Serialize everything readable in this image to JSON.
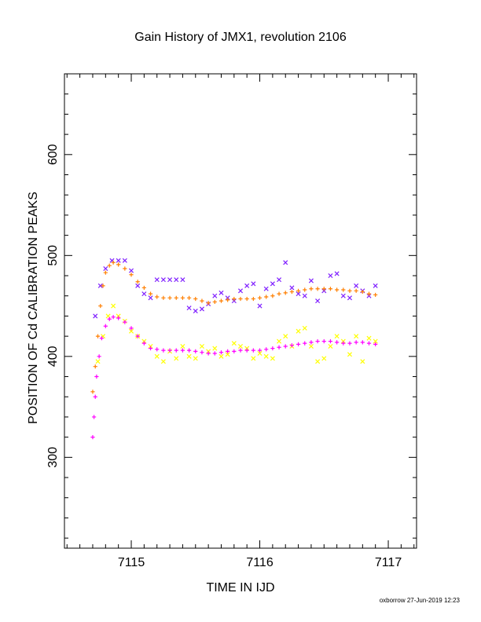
{
  "chart_data": {
    "type": "scatter",
    "title": "Gain History of JMX1, revolution 2106",
    "xlabel": "TIME IN IJD",
    "ylabel": "POSITION OF Cd CALIBRATION PEAKS",
    "xlim": [
      7114.48,
      7117.22
    ],
    "ylim": [
      210,
      680
    ],
    "xticks": [
      7115,
      7116,
      7117
    ],
    "yticks": [
      300,
      400,
      500,
      600
    ],
    "grid": false,
    "series": [
      {
        "marker": "x",
        "color": "#7f1fff",
        "x": [
          7114.72,
          7114.76,
          7114.8,
          7114.85,
          7114.9,
          7114.95,
          7115.0,
          7115.05,
          7115.1,
          7115.15,
          7115.2,
          7115.25,
          7115.3,
          7115.35,
          7115.4,
          7115.45,
          7115.5,
          7115.55,
          7115.6,
          7115.65,
          7115.7,
          7115.75,
          7115.8,
          7115.85,
          7115.9,
          7115.95,
          7116.0,
          7116.05,
          7116.1,
          7116.15,
          7116.2,
          7116.25,
          7116.3,
          7116.35,
          7116.4,
          7116.45,
          7116.5,
          7116.55,
          7116.6,
          7116.65,
          7116.7,
          7116.75,
          7116.8,
          7116.85,
          7116.9
        ],
        "y": [
          440,
          470,
          487,
          495,
          495,
          495,
          485,
          470,
          462,
          458,
          476,
          476,
          476,
          476,
          476,
          448,
          445,
          447,
          452,
          460,
          463,
          458,
          455,
          465,
          470,
          472,
          450,
          467,
          472,
          476,
          493,
          468,
          462,
          460,
          475,
          455,
          465,
          480,
          482,
          460,
          458,
          470,
          465,
          460,
          470
        ]
      },
      {
        "marker": "+",
        "color": "#ff7f00",
        "x": [
          7114.7,
          7114.72,
          7114.74,
          7114.76,
          7114.78,
          7114.8,
          7114.83,
          7114.86,
          7114.9,
          7114.95,
          7115.0,
          7115.05,
          7115.1,
          7115.15,
          7115.2,
          7115.25,
          7115.3,
          7115.35,
          7115.4,
          7115.45,
          7115.5,
          7115.55,
          7115.6,
          7115.65,
          7115.7,
          7115.75,
          7115.8,
          7115.85,
          7115.9,
          7115.95,
          7116.0,
          7116.05,
          7116.1,
          7116.15,
          7116.2,
          7116.25,
          7116.3,
          7116.35,
          7116.4,
          7116.45,
          7116.5,
          7116.55,
          7116.6,
          7116.65,
          7116.7,
          7116.75,
          7116.8,
          7116.85,
          7116.9
        ],
        "y": [
          365,
          390,
          420,
          450,
          470,
          483,
          490,
          493,
          491,
          487,
          481,
          474,
          468,
          462,
          459,
          458,
          458,
          458,
          458,
          458,
          457,
          455,
          453,
          454,
          455,
          456,
          457,
          457,
          457,
          457,
          458,
          459,
          460,
          462,
          463,
          464,
          465,
          466,
          467,
          467,
          467,
          467,
          466,
          466,
          465,
          465,
          464,
          462,
          461
        ]
      },
      {
        "marker": "x",
        "color": "#ffff00",
        "x": [
          7114.74,
          7114.78,
          7114.82,
          7114.86,
          7114.9,
          7114.95,
          7115.0,
          7115.05,
          7115.1,
          7115.15,
          7115.2,
          7115.25,
          7115.3,
          7115.35,
          7115.4,
          7115.45,
          7115.5,
          7115.55,
          7115.6,
          7115.65,
          7115.7,
          7115.75,
          7115.8,
          7115.85,
          7115.9,
          7115.95,
          7116.0,
          7116.05,
          7116.1,
          7116.15,
          7116.2,
          7116.25,
          7116.3,
          7116.35,
          7116.4,
          7116.45,
          7116.5,
          7116.55,
          7116.6,
          7116.65,
          7116.7,
          7116.75,
          7116.8,
          7116.85,
          7116.9
        ],
        "y": [
          395,
          420,
          440,
          450,
          440,
          435,
          425,
          420,
          415,
          410,
          400,
          395,
          405,
          398,
          410,
          400,
          398,
          410,
          405,
          408,
          400,
          402,
          413,
          410,
          408,
          398,
          403,
          400,
          398,
          415,
          420,
          410,
          425,
          428,
          410,
          395,
          398,
          410,
          420,
          415,
          402,
          420,
          395,
          418,
          415
        ]
      },
      {
        "marker": "+",
        "color": "#ff00ff",
        "x": [
          7114.7,
          7114.71,
          7114.72,
          7114.73,
          7114.75,
          7114.77,
          7114.8,
          7114.83,
          7114.86,
          7114.9,
          7114.95,
          7115.0,
          7115.05,
          7115.1,
          7115.15,
          7115.2,
          7115.25,
          7115.3,
          7115.35,
          7115.4,
          7115.45,
          7115.5,
          7115.55,
          7115.6,
          7115.65,
          7115.7,
          7115.75,
          7115.8,
          7115.85,
          7115.9,
          7115.95,
          7116.0,
          7116.05,
          7116.1,
          7116.15,
          7116.2,
          7116.25,
          7116.3,
          7116.35,
          7116.4,
          7116.45,
          7116.5,
          7116.55,
          7116.6,
          7116.65,
          7116.7,
          7116.75,
          7116.8,
          7116.85,
          7116.9
        ],
        "y": [
          320,
          340,
          360,
          380,
          400,
          418,
          430,
          437,
          439,
          438,
          434,
          428,
          420,
          413,
          408,
          407,
          406,
          406,
          406,
          406,
          406,
          405,
          404,
          403,
          403,
          404,
          405,
          405,
          406,
          406,
          406,
          406,
          407,
          408,
          409,
          410,
          411,
          412,
          413,
          414,
          415,
          415,
          415,
          414,
          413,
          413,
          414,
          414,
          413,
          412
        ]
      }
    ]
  },
  "footer": {
    "credit": "oxborrow 27-Jun-2019 12:23"
  }
}
